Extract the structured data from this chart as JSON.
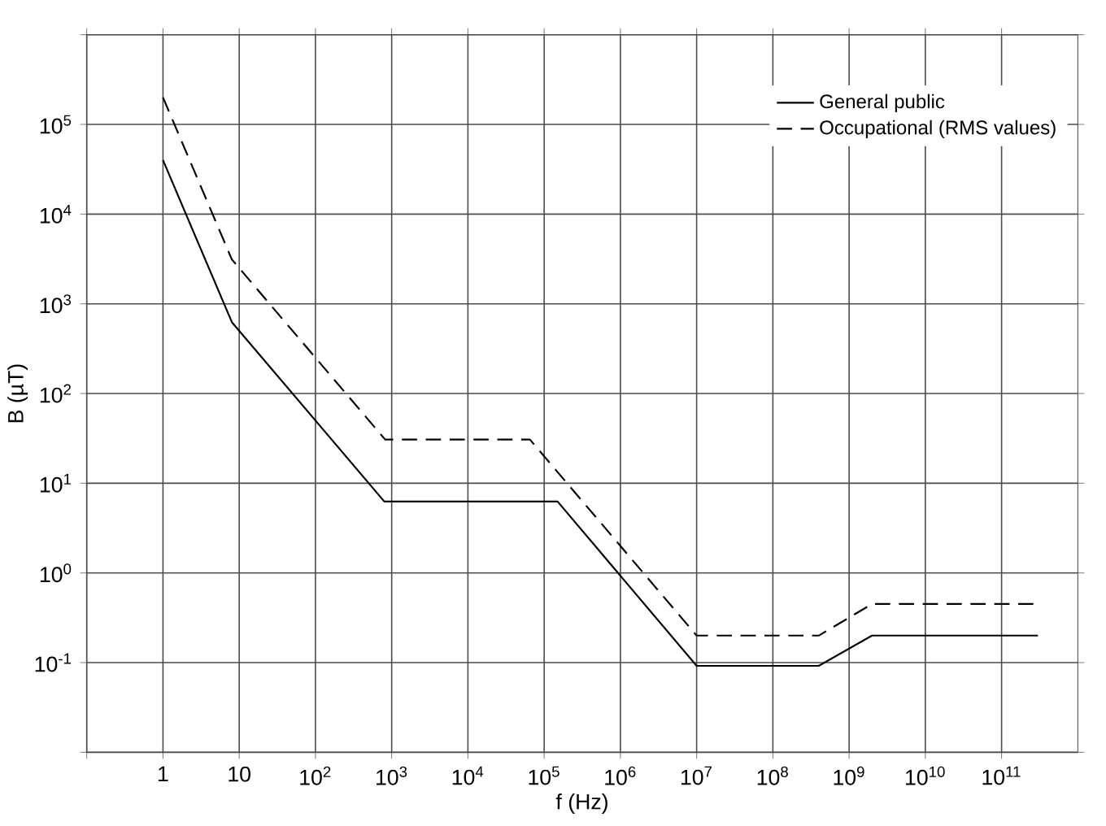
{
  "chart_data": {
    "type": "line",
    "xlabel": "f (Hz)",
    "ylabel": "B (µT)",
    "log": "xy",
    "grid": true,
    "legend": "top right",
    "xlim": [
      0.1,
      1000000000000.0
    ],
    "ylim": [
      0.01,
      1000000.0
    ],
    "xticks": [
      {
        "value": 0.1,
        "label": null
      },
      {
        "value": 1,
        "label": "1"
      },
      {
        "value": 10,
        "label": "10"
      },
      {
        "value": 100,
        "label": "10$^{2}$"
      },
      {
        "value": 1000,
        "label": "10$^{3}$"
      },
      {
        "value": 10000,
        "label": "10$^{4}$"
      },
      {
        "value": 100000,
        "label": "10$^{5}$"
      },
      {
        "value": 1000000,
        "label": "10$^{6}$"
      },
      {
        "value": 10000000,
        "label": "10$^{7}$"
      },
      {
        "value": 100000000,
        "label": "10$^{8}$"
      },
      {
        "value": 1000000000,
        "label": "10$^{9}$"
      },
      {
        "value": 10000000000,
        "label": "10$^{10}$"
      },
      {
        "value": 100000000000,
        "label": "10$^{11}$"
      }
    ],
    "yticks": [
      {
        "value": 0.01,
        "label": null
      },
      {
        "value": 0.1,
        "label": "10$^{-1}$"
      },
      {
        "value": 1,
        "label": "10$^{0}$"
      },
      {
        "value": 10,
        "label": "10$^{1}$"
      },
      {
        "value": 100,
        "label": "10$^{2}$"
      },
      {
        "value": 1000,
        "label": "10$^{3}$"
      },
      {
        "value": 10000,
        "label": "10$^{4}$"
      },
      {
        "value": 100000,
        "label": "10$^{5}$"
      },
      {
        "value": 1000000,
        "label": null
      }
    ],
    "series": [
      {
        "name": "General public",
        "color": "#000000",
        "line_style": "solid",
        "x": [
          1,
          8,
          800,
          150000,
          10000000,
          400000000,
          2000000000,
          300000000000
        ],
        "values": [
          40000,
          625,
          6.25,
          6.25,
          0.092,
          0.092,
          0.2,
          0.2
        ]
      },
      {
        "name": "Occupational (RMS values)",
        "color": "#000000",
        "line_style": "dashed",
        "x": [
          1,
          8,
          25,
          820,
          65000,
          10000000,
          400000000,
          2000000000,
          300000000000
        ],
        "values": [
          200000,
          3125,
          1000,
          30.7,
          30.7,
          0.2,
          0.2,
          0.45,
          0.45
        ]
      }
    ]
  }
}
